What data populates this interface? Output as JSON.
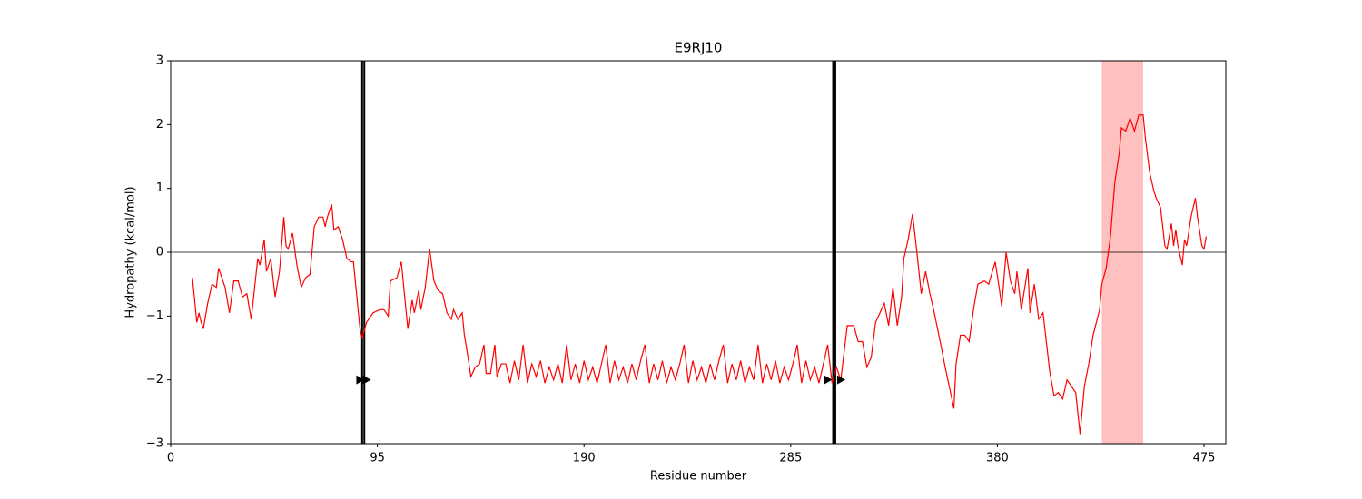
{
  "chart_data": {
    "type": "line",
    "title": "E9RJ10",
    "xlabel": "Residue number",
    "ylabel": "Hydropathy (kcal/mol)",
    "xlim": [
      0,
      485
    ],
    "ylim": [
      -3,
      3
    ],
    "xticks": [
      0,
      95,
      190,
      285,
      380,
      475
    ],
    "yticks": [
      {
        "value": -3,
        "label": "−3"
      },
      {
        "value": -2,
        "label": "−2"
      },
      {
        "value": -1,
        "label": "−1"
      },
      0,
      1,
      2,
      3
    ],
    "hline": 0,
    "vlines": [
      88,
      89,
      304.5,
      305.5
    ],
    "spans": [
      {
        "start": 428,
        "end": 447,
        "color": "#ffc0c0"
      }
    ],
    "markers": [
      {
        "x": 87,
        "y": -2
      },
      {
        "x": 90,
        "y": -2
      },
      {
        "x": 302,
        "y": -2
      },
      {
        "x": 308,
        "y": -2
      }
    ],
    "series": [
      {
        "color": "#ff0000",
        "x": [
          10,
          12,
          13,
          14,
          15,
          17,
          19,
          21,
          22,
          25,
          27,
          29,
          31,
          33,
          35,
          37,
          40,
          41,
          43,
          44,
          46,
          48,
          50,
          52,
          53,
          54,
          56,
          57,
          58,
          60,
          62,
          64,
          66,
          68,
          70,
          71,
          72,
          74,
          75,
          77,
          79,
          81,
          83,
          84,
          87,
          88,
          90,
          93,
          96,
          98,
          100,
          101,
          104,
          106,
          107,
          109,
          111,
          112,
          114,
          115,
          117,
          119,
          121,
          123,
          125,
          127,
          129,
          130,
          132,
          134,
          135,
          136,
          138,
          140,
          142,
          144,
          145,
          147,
          149,
          150,
          152,
          154,
          156,
          158,
          160,
          162,
          164,
          166,
          168,
          170,
          172,
          174,
          176,
          178,
          180,
          182,
          184,
          186,
          188,
          190,
          192,
          194,
          196,
          198,
          200,
          202,
          204,
          206,
          208,
          210,
          212,
          214,
          216,
          218,
          220,
          222,
          224,
          226,
          228,
          230,
          232,
          234,
          236,
          238,
          240,
          242,
          244,
          246,
          248,
          250,
          252,
          254,
          256,
          258,
          260,
          262,
          264,
          266,
          268,
          270,
          272,
          274,
          276,
          278,
          280,
          282,
          284,
          286,
          288,
          290,
          292,
          294,
          296,
          298,
          300,
          302,
          304,
          306,
          308,
          311,
          314,
          316,
          318,
          320,
          322,
          324,
          326,
          328,
          330,
          332,
          334,
          336,
          337,
          339,
          341,
          343,
          345,
          347,
          349,
          351,
          354,
          356,
          360,
          361,
          363,
          365,
          367,
          369,
          371,
          374,
          376,
          379,
          381,
          382,
          384,
          386,
          388,
          389,
          391,
          394,
          395,
          397,
          399,
          401,
          404,
          406,
          408,
          410,
          412,
          414,
          416,
          418,
          420,
          422,
          424,
          427,
          428,
          430,
          432,
          434,
          436,
          437,
          439,
          441,
          443,
          445,
          447,
          448,
          450,
          452,
          453,
          455,
          457,
          458,
          460,
          461,
          462,
          463,
          465,
          466,
          467,
          469,
          471,
          472,
          474,
          475,
          476
        ],
        "values": [
          -0.4,
          -1.1,
          -0.95,
          -1.1,
          -1.2,
          -0.8,
          -0.5,
          -0.55,
          -0.25,
          -0.55,
          -0.95,
          -0.45,
          -0.45,
          -0.7,
          -0.65,
          -1.05,
          -0.1,
          -0.2,
          0.2,
          -0.3,
          -0.1,
          -0.7,
          -0.3,
          0.55,
          0.1,
          0.05,
          0.3,
          0.05,
          -0.2,
          -0.55,
          -0.4,
          -0.35,
          0.4,
          0.55,
          0.55,
          0.4,
          0.55,
          0.75,
          0.35,
          0.4,
          0.2,
          -0.1,
          -0.15,
          -0.15,
          -1.2,
          -1.35,
          -1.1,
          -0.95,
          -0.9,
          -0.9,
          -1.0,
          -0.45,
          -0.4,
          -0.15,
          -0.5,
          -1.2,
          -0.75,
          -0.95,
          -0.6,
          -0.9,
          -0.55,
          0.05,
          -0.45,
          -0.6,
          -0.65,
          -0.95,
          -1.05,
          -0.9,
          -1.05,
          -0.95,
          -1.3,
          -1.5,
          -1.95,
          -1.8,
          -1.75,
          -1.45,
          -1.9,
          -1.9,
          -1.45,
          -1.95,
          -1.75,
          -1.75,
          -2.05,
          -1.7,
          -2.0,
          -1.45,
          -2.05,
          -1.75,
          -1.95,
          -1.7,
          -2.05,
          -1.8,
          -2.0,
          -1.75,
          -2.05,
          -1.45,
          -2.0,
          -1.75,
          -2.05,
          -1.7,
          -2.0,
          -1.8,
          -2.05,
          -1.75,
          -1.45,
          -2.05,
          -1.7,
          -2.0,
          -1.8,
          -2.05,
          -1.75,
          -2.0,
          -1.7,
          -1.45,
          -2.05,
          -1.75,
          -2.0,
          -1.7,
          -2.05,
          -1.8,
          -2.0,
          -1.75,
          -1.45,
          -2.05,
          -1.7,
          -2.0,
          -1.8,
          -2.05,
          -1.75,
          -2.0,
          -1.7,
          -1.45,
          -2.05,
          -1.75,
          -2.0,
          -1.7,
          -2.05,
          -1.8,
          -2.0,
          -1.45,
          -2.05,
          -1.75,
          -2.0,
          -1.7,
          -2.05,
          -1.8,
          -2.0,
          -1.75,
          -1.45,
          -2.05,
          -1.7,
          -2.0,
          -1.8,
          -2.05,
          -1.75,
          -1.45,
          -2.05,
          -1.8,
          -2.0,
          -1.15,
          -1.15,
          -1.4,
          -1.4,
          -1.8,
          -1.65,
          -1.1,
          -0.95,
          -0.8,
          -1.15,
          -0.55,
          -1.15,
          -0.7,
          -0.1,
          0.2,
          0.6,
          0,
          -0.65,
          -0.3,
          -0.65,
          -0.95,
          -1.45,
          -1.8,
          -2.45,
          -1.75,
          -1.3,
          -1.3,
          -1.4,
          -0.9,
          -0.5,
          -0.45,
          -0.5,
          -0.15,
          -0.6,
          -0.85,
          0,
          -0.45,
          -0.65,
          -0.3,
          -0.9,
          -0.25,
          -0.95,
          -0.5,
          -1.05,
          -0.95,
          -1.85,
          -2.25,
          -2.2,
          -2.3,
          -2.0,
          -2.1,
          -2.2,
          -2.85,
          -2.1,
          -1.75,
          -1.3,
          -0.9,
          -0.5,
          -0.25,
          0.25,
          1.1,
          1.55,
          1.95,
          1.9,
          2.1,
          1.9,
          2.15,
          2.15,
          1.8,
          1.25,
          0.95,
          0.85,
          0.7,
          0.1,
          0.05,
          0.45,
          0.1,
          0.35,
          0.1,
          -0.2,
          0.2,
          0.1,
          0.55,
          0.85,
          0.55,
          0.1,
          0.05,
          0.25
        ]
      }
    ]
  }
}
